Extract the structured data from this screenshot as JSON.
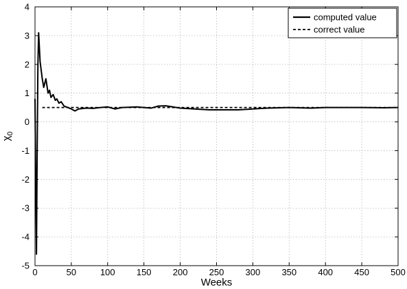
{
  "chart_data": {
    "type": "line",
    "xlabel": "Weeks",
    "ylabel": "χ",
    "ylabel_sub": "0",
    "xlim": [
      0,
      500
    ],
    "ylim": [
      -5,
      4
    ],
    "xticks": [
      0,
      50,
      100,
      150,
      200,
      250,
      300,
      350,
      400,
      450,
      500
    ],
    "yticks": [
      -5,
      -4,
      -3,
      -2,
      -1,
      0,
      1,
      2,
      3,
      4
    ],
    "grid": true,
    "legend_position": "top-right",
    "series": [
      {
        "name": "computed value",
        "style": "solid",
        "color": "#000000",
        "x": [
          0,
          1,
          2,
          3,
          4,
          5,
          6,
          7,
          8,
          10,
          12,
          15,
          18,
          20,
          22,
          25,
          28,
          30,
          33,
          36,
          40,
          45,
          50,
          55,
          60,
          70,
          80,
          90,
          100,
          110,
          120,
          140,
          160,
          170,
          180,
          190,
          200,
          220,
          240,
          260,
          280,
          300,
          320,
          350,
          380,
          400,
          420,
          450,
          480,
          500
        ],
        "y": [
          0.8,
          -2.0,
          -4.6,
          -1.0,
          2.0,
          3.1,
          2.6,
          2.1,
          1.9,
          1.5,
          1.2,
          1.5,
          1.0,
          1.1,
          0.85,
          0.95,
          0.75,
          0.8,
          0.65,
          0.7,
          0.55,
          0.5,
          0.45,
          0.38,
          0.45,
          0.48,
          0.47,
          0.5,
          0.52,
          0.45,
          0.5,
          0.52,
          0.48,
          0.55,
          0.56,
          0.52,
          0.48,
          0.45,
          0.42,
          0.42,
          0.42,
          0.45,
          0.48,
          0.5,
          0.48,
          0.5,
          0.5,
          0.5,
          0.49,
          0.5
        ]
      },
      {
        "name": "correct value",
        "style": "dashed",
        "color": "#000000",
        "x": [
          10,
          500
        ],
        "y": [
          0.5,
          0.5
        ]
      }
    ]
  }
}
